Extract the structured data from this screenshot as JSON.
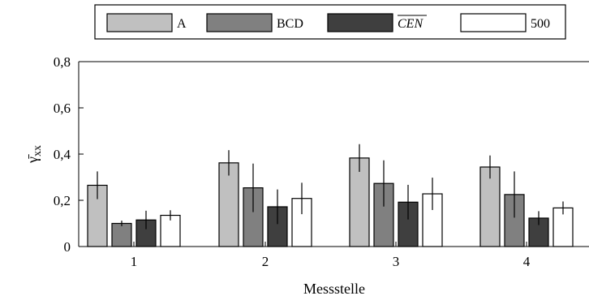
{
  "chart_data": {
    "type": "bar",
    "title": "",
    "xlabel": "Messstelle",
    "ylabel": "γ̄",
    "ylabel_subscript": "xx",
    "categories": [
      "1",
      "2",
      "3",
      "4"
    ],
    "ylim": [
      0,
      0.8
    ],
    "yticks": [
      "0",
      "0,2",
      "0,4",
      "0,6",
      "0,8"
    ],
    "ytick_values": [
      0,
      0.2,
      0.4,
      0.6,
      0.8
    ],
    "grid": false,
    "legend_position": "top",
    "series": [
      {
        "name": "A",
        "color": "#c0c0c0",
        "values": [
          0.265,
          0.362,
          0.383,
          0.344
        ],
        "errors": [
          0.06,
          0.055,
          0.06,
          0.05
        ]
      },
      {
        "name": "BCD",
        "color": "#808080",
        "values": [
          0.1,
          0.254,
          0.273,
          0.225
        ],
        "errors": [
          0.012,
          0.105,
          0.1,
          0.1
        ]
      },
      {
        "name": "CEN",
        "overline": true,
        "italic": true,
        "color": "#3f3f3f",
        "values": [
          0.115,
          0.172,
          0.192,
          0.123
        ],
        "errors": [
          0.04,
          0.075,
          0.075,
          0.03
        ]
      },
      {
        "name": "500",
        "color": "#ffffff",
        "values": [
          0.135,
          0.208,
          0.228,
          0.167
        ],
        "errors": [
          0.022,
          0.068,
          0.07,
          0.028
        ]
      }
    ]
  }
}
